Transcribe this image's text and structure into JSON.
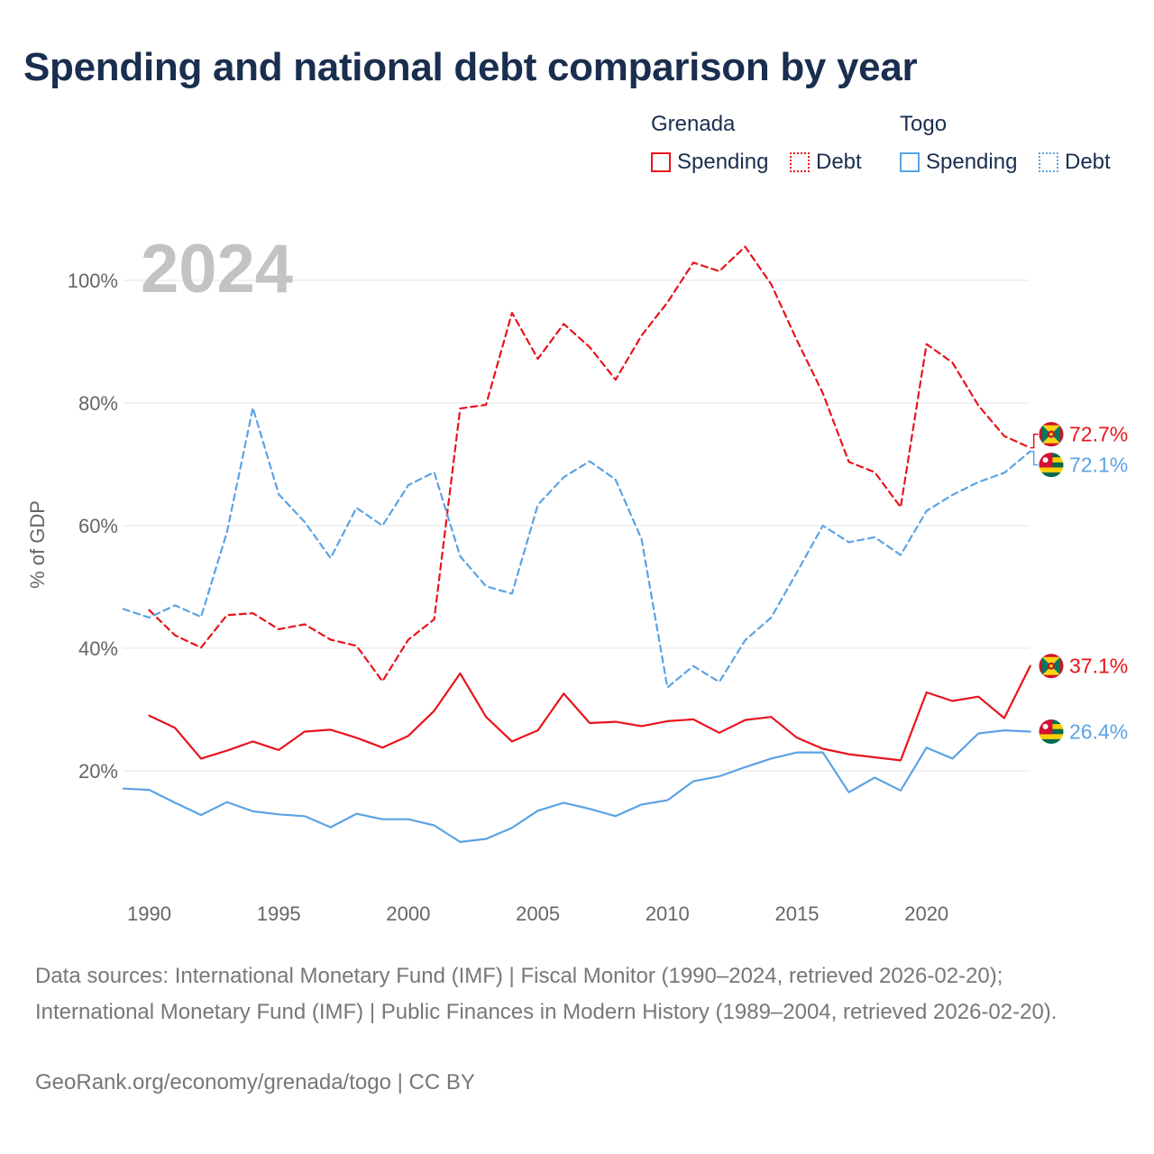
{
  "title": "Spending and national debt comparison by year",
  "legend": {
    "groups": [
      {
        "country": "Grenada",
        "spending_label": "Spending",
        "debt_label": "Debt",
        "color": "#e8141c"
      },
      {
        "country": "Togo",
        "spending_label": "Spending",
        "debt_label": "Debt",
        "color": "#5ba3e4"
      }
    ]
  },
  "footer": {
    "sources": "Data sources: International Monetary Fund (IMF) | Fiscal Monitor (1990–2024, retrieved 2026-02-20); International Monetary Fund (IMF) | Public Finances in Modern History (1989–2004, retrieved 2026-02-20).",
    "link": "GeoRank.org/economy/grenada/togo | CC BY"
  },
  "chart_data": {
    "type": "line",
    "year_label": "2024",
    "ylabel": "% of GDP",
    "xlim": [
      1989,
      2024
    ],
    "ylim": [
      0,
      108
    ],
    "x_ticks": [
      1990,
      1995,
      2000,
      2005,
      2010,
      2015,
      2020
    ],
    "y_ticks": [
      20,
      40,
      60,
      80,
      100
    ],
    "y_tick_labels": [
      "20%",
      "40%",
      "60%",
      "80%",
      "100%"
    ],
    "grid": "horizontal",
    "series": [
      {
        "name": "Grenada Spending",
        "country": "Grenada",
        "kind": "spending",
        "color": "#e8141c",
        "dash": "solid",
        "end_label": "37.1%",
        "x": [
          1990,
          1991,
          1992,
          1993,
          1994,
          1995,
          1996,
          1997,
          1998,
          1999,
          2000,
          2001,
          2002,
          2003,
          2004,
          2005,
          2006,
          2007,
          2008,
          2009,
          2010,
          2011,
          2012,
          2013,
          2014,
          2015,
          2016,
          2017,
          2018,
          2019,
          2020,
          2021,
          2022,
          2023,
          2024
        ],
        "values": [
          29.0,
          27.0,
          22.0,
          23.3,
          24.8,
          23.4,
          26.4,
          26.7,
          25.4,
          23.8,
          25.7,
          29.8,
          35.9,
          28.8,
          24.8,
          26.6,
          32.6,
          27.8,
          28.0,
          27.3,
          28.1,
          28.4,
          26.2,
          28.3,
          28.8,
          25.4,
          23.6,
          22.7,
          22.2,
          21.7,
          32.8,
          31.4,
          32.1,
          28.6,
          37.1
        ]
      },
      {
        "name": "Grenada Debt",
        "country": "Grenada",
        "kind": "debt",
        "color": "#e8141c",
        "dash": "dashed",
        "end_label": "72.7%",
        "x": [
          1990,
          1991,
          1992,
          1993,
          1994,
          1995,
          1996,
          1997,
          1998,
          1999,
          2000,
          2001,
          2002,
          2003,
          2004,
          2005,
          2006,
          2007,
          2008,
          2009,
          2010,
          2011,
          2012,
          2013,
          2014,
          2015,
          2016,
          2017,
          2018,
          2019,
          2020,
          2021,
          2022,
          2023,
          2024
        ],
        "values": [
          46.2,
          42.1,
          40.1,
          45.4,
          45.7,
          43.1,
          43.9,
          41.4,
          40.4,
          34.6,
          41.4,
          44.7,
          79.1,
          79.7,
          94.7,
          87.2,
          92.9,
          89.1,
          83.8,
          91.0,
          96.4,
          102.9,
          101.5,
          105.5,
          99.4,
          90.2,
          81.6,
          70.4,
          68.7,
          63.0,
          89.6,
          86.6,
          79.6,
          74.6,
          72.7
        ]
      },
      {
        "name": "Togo Spending",
        "country": "Togo",
        "kind": "spending",
        "color": "#5ba3e4",
        "dash": "solid",
        "end_label": "26.4%",
        "x": [
          1989,
          1990,
          1991,
          1992,
          1993,
          1994,
          1995,
          1996,
          1997,
          1998,
          1999,
          2000,
          2001,
          2002,
          2003,
          2004,
          2005,
          2006,
          2007,
          2008,
          2009,
          2010,
          2011,
          2012,
          2013,
          2014,
          2015,
          2016,
          2017,
          2018,
          2019,
          2020,
          2021,
          2022,
          2023,
          2024
        ],
        "values": [
          17.1,
          16.9,
          14.8,
          12.8,
          14.9,
          13.4,
          12.9,
          12.6,
          10.8,
          13.0,
          12.1,
          12.1,
          11.1,
          8.4,
          8.9,
          10.7,
          13.5,
          14.8,
          13.8,
          12.6,
          14.5,
          15.2,
          18.3,
          19.1,
          20.6,
          22.0,
          23.0,
          23.0,
          16.5,
          18.9,
          16.8,
          23.8,
          22.0,
          26.1,
          26.6,
          26.4
        ]
      },
      {
        "name": "Togo Debt",
        "country": "Togo",
        "kind": "debt",
        "color": "#5ba3e4",
        "dash": "dashed",
        "end_label": "72.1%",
        "x": [
          1989,
          1990,
          1991,
          1992,
          1993,
          1994,
          1995,
          1996,
          1997,
          1998,
          1999,
          2000,
          2001,
          2002,
          2003,
          2004,
          2005,
          2006,
          2007,
          2008,
          2009,
          2010,
          2011,
          2012,
          2013,
          2014,
          2015,
          2016,
          2017,
          2018,
          2019,
          2020,
          2021,
          2022,
          2023,
          2024
        ],
        "values": [
          46.4,
          45.0,
          47.0,
          45.1,
          58.9,
          79.2,
          65.1,
          60.6,
          54.7,
          62.9,
          60.0,
          66.6,
          68.7,
          55.0,
          50.1,
          48.9,
          63.4,
          67.9,
          70.5,
          67.5,
          57.8,
          33.6,
          37.1,
          34.5,
          41.3,
          45.0,
          52.4,
          60.0,
          57.3,
          58.1,
          55.2,
          62.4,
          65.0,
          67.1,
          68.6,
          72.1
        ]
      }
    ]
  }
}
